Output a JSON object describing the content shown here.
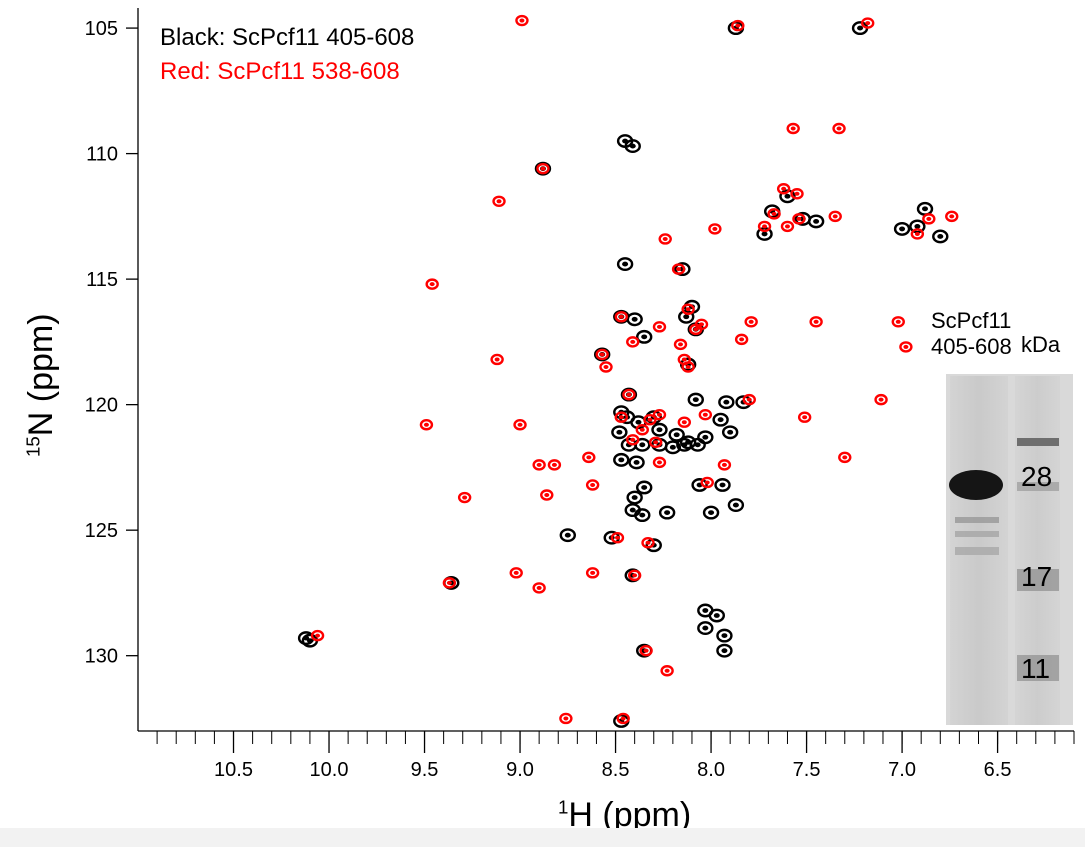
{
  "chart_data": {
    "type": "scatter",
    "xlabel_sup": "1",
    "xlabel": "H (ppm)",
    "ylabel_sup": "15",
    "ylabel": "N (ppm)",
    "xlim": [
      11.0,
      6.1
    ],
    "ylim": [
      104.2,
      133.0
    ],
    "x_ticks": [
      10.5,
      10.0,
      9.5,
      9.0,
      8.5,
      8.0,
      7.5,
      7.0,
      6.5
    ],
    "x_tick_labels": [
      "10.5",
      "10.0",
      "9.5",
      "9.0",
      "8.5",
      "8.0",
      "7.5",
      "7.0",
      "6.5"
    ],
    "y_ticks": [
      105,
      110,
      115,
      120,
      125,
      130
    ],
    "y_tick_labels": [
      "105",
      "110",
      "115",
      "120",
      "125",
      "130"
    ],
    "legend": [
      {
        "label": "Black: ScPcf11 405-608",
        "color": "#000000"
      },
      {
        "label": "Red: ScPcf11 538-608",
        "color": "#ff0000"
      }
    ],
    "series": [
      {
        "name": "Black: ScPcf11 405-608",
        "color": "#000000",
        "points": [
          [
            8.45,
            109.5
          ],
          [
            8.41,
            109.7
          ],
          [
            7.87,
            105.0
          ],
          [
            8.88,
            110.6
          ],
          [
            7.6,
            111.7
          ],
          [
            7.68,
            112.3
          ],
          [
            7.52,
            112.6
          ],
          [
            7.72,
            113.2
          ],
          [
            7.45,
            112.7
          ],
          [
            6.88,
            112.2
          ],
          [
            6.92,
            112.9
          ],
          [
            6.8,
            113.3
          ],
          [
            7.0,
            113.0
          ],
          [
            8.45,
            114.4
          ],
          [
            8.15,
            114.6
          ],
          [
            8.1,
            116.1
          ],
          [
            8.13,
            116.5
          ],
          [
            8.47,
            116.5
          ],
          [
            8.4,
            116.6
          ],
          [
            8.35,
            117.3
          ],
          [
            8.08,
            117.0
          ],
          [
            8.57,
            118.0
          ],
          [
            8.12,
            118.4
          ],
          [
            8.43,
            119.6
          ],
          [
            8.08,
            119.8
          ],
          [
            7.92,
            119.9
          ],
          [
            7.83,
            119.9
          ],
          [
            8.44,
            120.5
          ],
          [
            8.38,
            120.7
          ],
          [
            8.3,
            120.5
          ],
          [
            8.27,
            121.0
          ],
          [
            8.18,
            121.2
          ],
          [
            8.12,
            121.5
          ],
          [
            8.03,
            121.3
          ],
          [
            7.95,
            120.6
          ],
          [
            7.9,
            121.1
          ],
          [
            8.48,
            121.1
          ],
          [
            8.43,
            121.6
          ],
          [
            8.36,
            121.6
          ],
          [
            8.27,
            121.6
          ],
          [
            8.2,
            121.7
          ],
          [
            8.14,
            121.6
          ],
          [
            8.07,
            121.6
          ],
          [
            8.47,
            122.2
          ],
          [
            8.39,
            122.3
          ],
          [
            8.35,
            123.3
          ],
          [
            8.4,
            123.7
          ],
          [
            8.41,
            124.2
          ],
          [
            8.23,
            124.3
          ],
          [
            8.36,
            124.4
          ],
          [
            7.94,
            123.2
          ],
          [
            8.75,
            125.2
          ],
          [
            8.52,
            125.3
          ],
          [
            8.3,
            125.6
          ],
          [
            8.0,
            124.3
          ],
          [
            7.22,
            105.0
          ],
          [
            8.41,
            126.8
          ],
          [
            8.03,
            128.9
          ],
          [
            7.97,
            128.4
          ],
          [
            7.93,
            129.2
          ],
          [
            7.93,
            129.8
          ],
          [
            8.03,
            128.2
          ],
          [
            8.35,
            129.8
          ],
          [
            10.1,
            129.4
          ],
          [
            10.12,
            129.3
          ],
          [
            8.47,
            132.6
          ],
          [
            7.87,
            124.0
          ],
          [
            8.47,
            120.3
          ],
          [
            8.06,
            123.2
          ],
          [
            9.36,
            127.1
          ]
        ]
      },
      {
        "name": "Red: ScPcf11 538-608",
        "color": "#ff0000",
        "points": [
          [
            8.99,
            104.7
          ],
          [
            7.86,
            104.9
          ],
          [
            7.18,
            104.8
          ],
          [
            7.57,
            109.0
          ],
          [
            7.33,
            109.0
          ],
          [
            8.88,
            110.6
          ],
          [
            9.11,
            111.9
          ],
          [
            7.62,
            111.4
          ],
          [
            7.55,
            111.6
          ],
          [
            7.67,
            112.4
          ],
          [
            7.54,
            112.6
          ],
          [
            7.35,
            112.5
          ],
          [
            7.72,
            112.9
          ],
          [
            7.6,
            112.9
          ],
          [
            6.74,
            112.5
          ],
          [
            6.86,
            112.6
          ],
          [
            6.92,
            113.2
          ],
          [
            8.24,
            113.4
          ],
          [
            7.98,
            113.0
          ],
          [
            9.46,
            115.2
          ],
          [
            8.17,
            114.6
          ],
          [
            8.12,
            116.2
          ],
          [
            8.47,
            116.5
          ],
          [
            8.27,
            116.9
          ],
          [
            8.08,
            117.0
          ],
          [
            8.05,
            116.8
          ],
          [
            7.79,
            116.7
          ],
          [
            7.45,
            116.7
          ],
          [
            7.02,
            116.7
          ],
          [
            6.98,
            117.7
          ],
          [
            8.41,
            117.5
          ],
          [
            8.16,
            117.6
          ],
          [
            7.84,
            117.4
          ],
          [
            8.57,
            118.0
          ],
          [
            8.14,
            118.2
          ],
          [
            8.12,
            118.5
          ],
          [
            9.12,
            118.2
          ],
          [
            8.55,
            118.5
          ],
          [
            8.43,
            119.6
          ],
          [
            7.8,
            119.8
          ],
          [
            7.11,
            119.8
          ],
          [
            8.47,
            120.5
          ],
          [
            8.32,
            120.6
          ],
          [
            8.27,
            120.4
          ],
          [
            8.14,
            120.7
          ],
          [
            8.03,
            120.4
          ],
          [
            9.49,
            120.8
          ],
          [
            9.0,
            120.8
          ],
          [
            8.36,
            121.0
          ],
          [
            8.41,
            121.4
          ],
          [
            8.29,
            121.5
          ],
          [
            7.51,
            120.5
          ],
          [
            8.9,
            122.4
          ],
          [
            8.82,
            122.4
          ],
          [
            8.64,
            122.1
          ],
          [
            8.27,
            122.3
          ],
          [
            7.93,
            122.4
          ],
          [
            7.3,
            122.1
          ],
          [
            9.29,
            123.7
          ],
          [
            8.86,
            123.6
          ],
          [
            8.62,
            123.2
          ],
          [
            8.02,
            123.1
          ],
          [
            8.49,
            125.3
          ],
          [
            8.33,
            125.5
          ],
          [
            9.02,
            126.7
          ],
          [
            8.62,
            126.7
          ],
          [
            8.4,
            126.8
          ],
          [
            9.37,
            127.1
          ],
          [
            8.9,
            127.3
          ],
          [
            8.34,
            129.8
          ],
          [
            8.23,
            130.6
          ],
          [
            10.06,
            129.2
          ],
          [
            8.76,
            132.5
          ],
          [
            8.46,
            132.5
          ]
        ]
      }
    ],
    "inset": {
      "sample_label_line1": "ScPcf11",
      "sample_label_line2": "405-608",
      "unit_label": "kDa",
      "marker_labels": [
        "28",
        "17",
        "11"
      ]
    }
  }
}
